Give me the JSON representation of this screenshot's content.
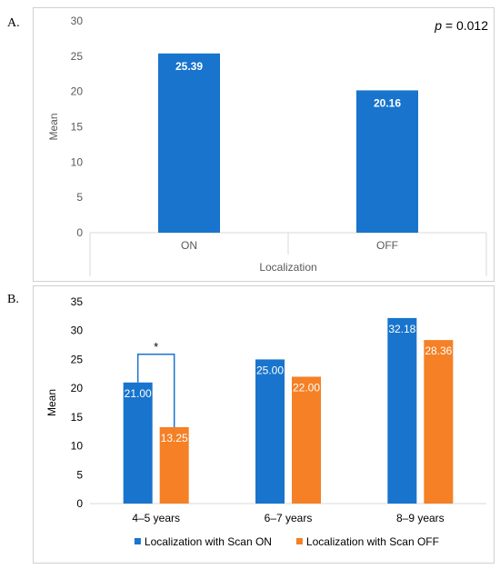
{
  "panels": [
    {
      "letter": "A."
    },
    {
      "letter": "B."
    }
  ],
  "colors": {
    "on": "#1874CD",
    "off": "#F58025",
    "axis_text": "#595959",
    "grid": "#d9d9d9",
    "bracket": "#1874CD"
  },
  "chart_data": [
    {
      "type": "bar",
      "categories": [
        "ON",
        "OFF"
      ],
      "values": [
        25.39,
        20.16
      ],
      "value_labels": [
        "25.39",
        "20.16"
      ],
      "title": "",
      "xlabel": "Localization",
      "ylabel": "Mean",
      "ylim": [
        0,
        30
      ],
      "yticks": [
        0,
        5,
        10,
        15,
        20,
        25,
        30
      ],
      "grid": false,
      "annotation": {
        "italic": "p",
        "text": " = 0.012"
      }
    },
    {
      "type": "bar",
      "categories": [
        "4–5 years",
        "6–7 years",
        "8–9 years"
      ],
      "series": [
        {
          "name": "Localization with Scan ON",
          "values": [
            21.0,
            25.0,
            32.18
          ],
          "value_labels": [
            "21.00",
            "25.00",
            "32.18"
          ]
        },
        {
          "name": "Localization with Scan OFF",
          "values": [
            13.25,
            22.0,
            28.36
          ],
          "value_labels": [
            "13.25",
            "22.00",
            "28.36"
          ]
        }
      ],
      "title": "",
      "xlabel": "",
      "ylabel": "Mean",
      "ylim": [
        0,
        35
      ],
      "yticks": [
        0,
        5,
        10,
        15,
        20,
        25,
        30,
        35
      ],
      "grid": false,
      "legend": "bottom",
      "significance": {
        "category_index": 0,
        "label": "*"
      }
    }
  ]
}
